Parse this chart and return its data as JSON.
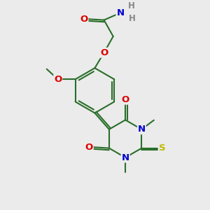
{
  "bg_color": "#ebebeb",
  "bond_color": "#2a6e2a",
  "bond_width": 1.5,
  "atom_colors": {
    "O": "#dd0000",
    "N": "#0000cc",
    "S": "#bbbb00",
    "H": "#888888",
    "C": "#2a6e2a"
  },
  "font_size": 9.5,
  "font_size_h": 8.5,
  "figsize": [
    3.0,
    3.0
  ],
  "dpi": 100,
  "xlim": [
    -1.0,
    9.0
  ],
  "ylim": [
    -1.0,
    9.0
  ]
}
